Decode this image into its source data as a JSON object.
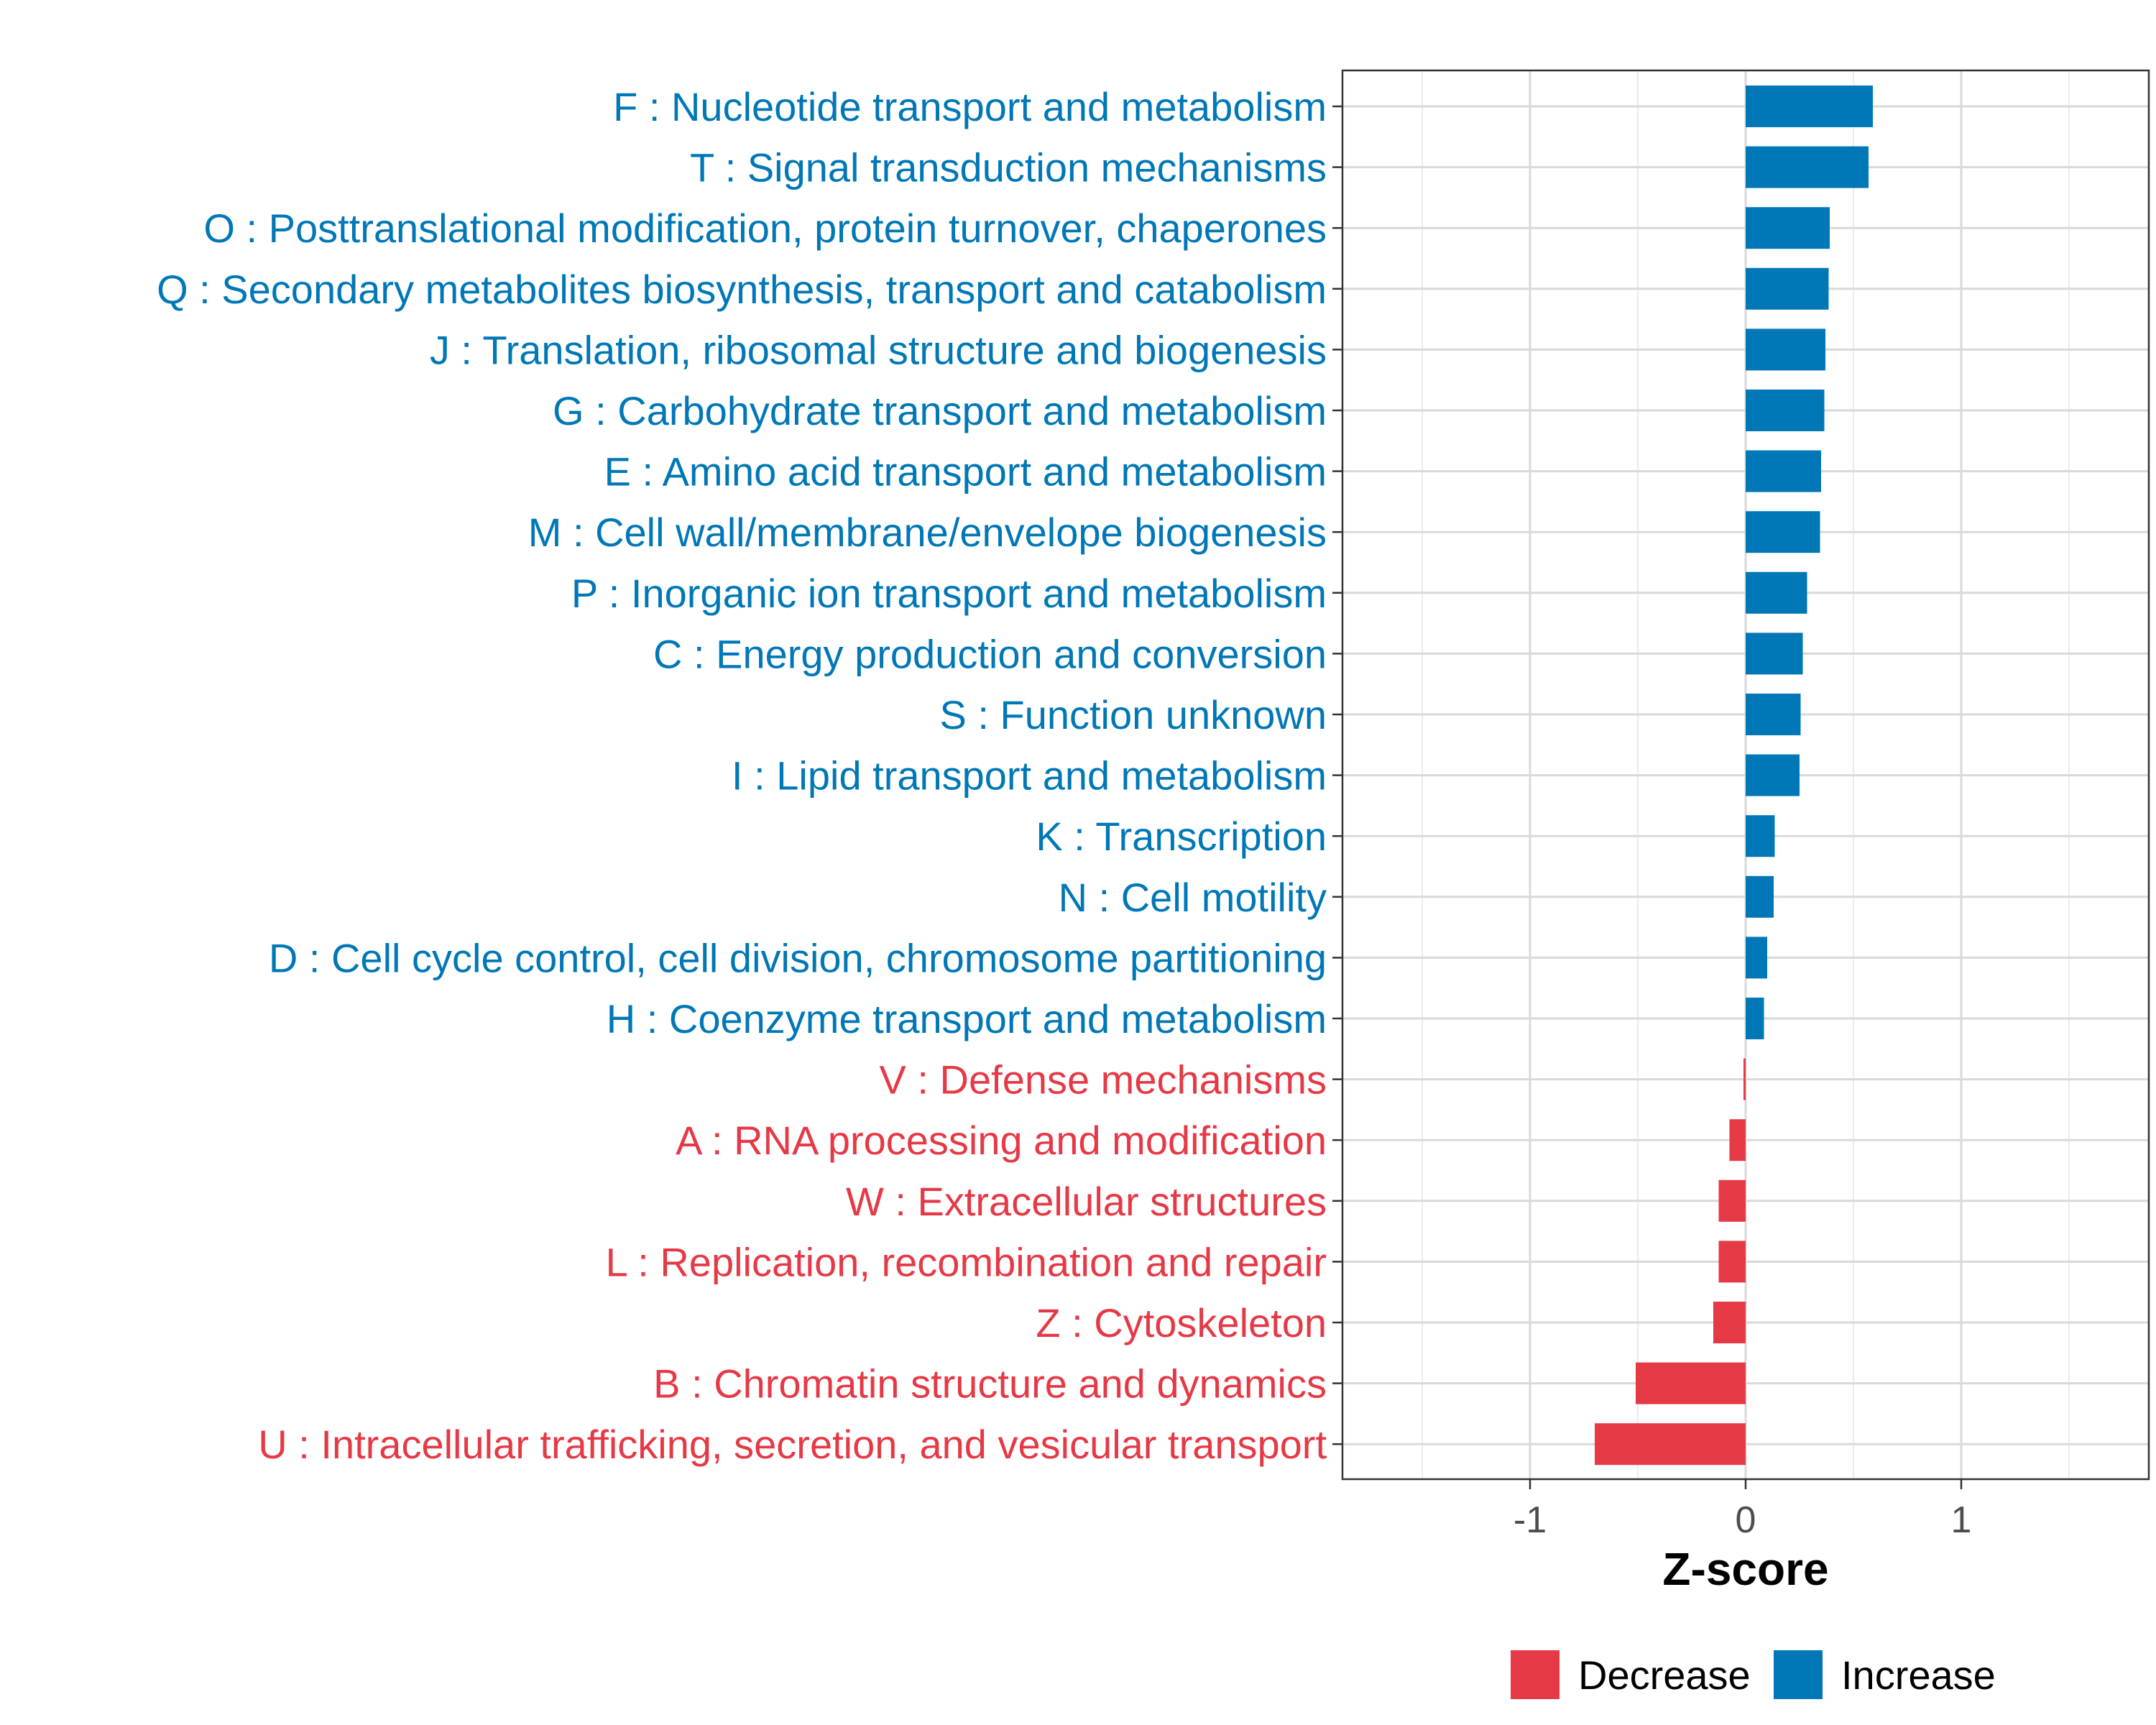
{
  "chart_data": {
    "type": "bar",
    "orientation": "horizontal",
    "xlabel": "Z-score",
    "xlim": [
      -1.87,
      1.87
    ],
    "xticks": [
      -1,
      0,
      1
    ],
    "xtick_labels": [
      "-1",
      "0",
      "1"
    ],
    "grid": true,
    "legend_position": "bottom",
    "colors": {
      "Decrease": "#e63946",
      "Increase": "#0077b6"
    },
    "legend": [
      {
        "name": "Decrease",
        "color": "#e63946"
      },
      {
        "name": "Increase",
        "color": "#0077b6"
      }
    ],
    "categories": [
      "F : Nucleotide transport and metabolism",
      "T : Signal transduction mechanisms",
      "O : Posttranslational modification, protein turnover, chaperones",
      "Q : Secondary metabolites biosynthesis, transport and catabolism",
      "J : Translation, ribosomal structure and biogenesis",
      "G : Carbohydrate transport and metabolism",
      "E : Amino acid transport and metabolism",
      "M : Cell wall/membrane/envelope biogenesis",
      "P : Inorganic ion transport and metabolism",
      "C : Energy production and conversion",
      "S : Function unknown",
      "I : Lipid transport and metabolism",
      "K : Transcription",
      "N : Cell motility",
      "D : Cell cycle control, cell division, chromosome partitioning",
      "H : Coenzyme transport and metabolism",
      "V : Defense mechanisms",
      "A : RNA processing and modification",
      "W : Extracellular structures",
      "L : Replication, recombination and repair",
      "Z : Cytoskeleton",
      "B : Chromatin structure and dynamics",
      "U : Intracellular trafficking, secretion, and vesicular transport"
    ],
    "values": [
      0.59,
      0.57,
      0.39,
      0.385,
      0.37,
      0.365,
      0.35,
      0.345,
      0.285,
      0.265,
      0.255,
      0.25,
      0.135,
      0.13,
      0.1,
      0.085,
      -0.01,
      -0.075,
      -0.125,
      -0.125,
      -0.15,
      -0.51,
      -0.7
    ],
    "direction": [
      "Increase",
      "Increase",
      "Increase",
      "Increase",
      "Increase",
      "Increase",
      "Increase",
      "Increase",
      "Increase",
      "Increase",
      "Increase",
      "Increase",
      "Increase",
      "Increase",
      "Increase",
      "Increase",
      "Decrease",
      "Decrease",
      "Decrease",
      "Decrease",
      "Decrease",
      "Decrease",
      "Decrease"
    ]
  }
}
